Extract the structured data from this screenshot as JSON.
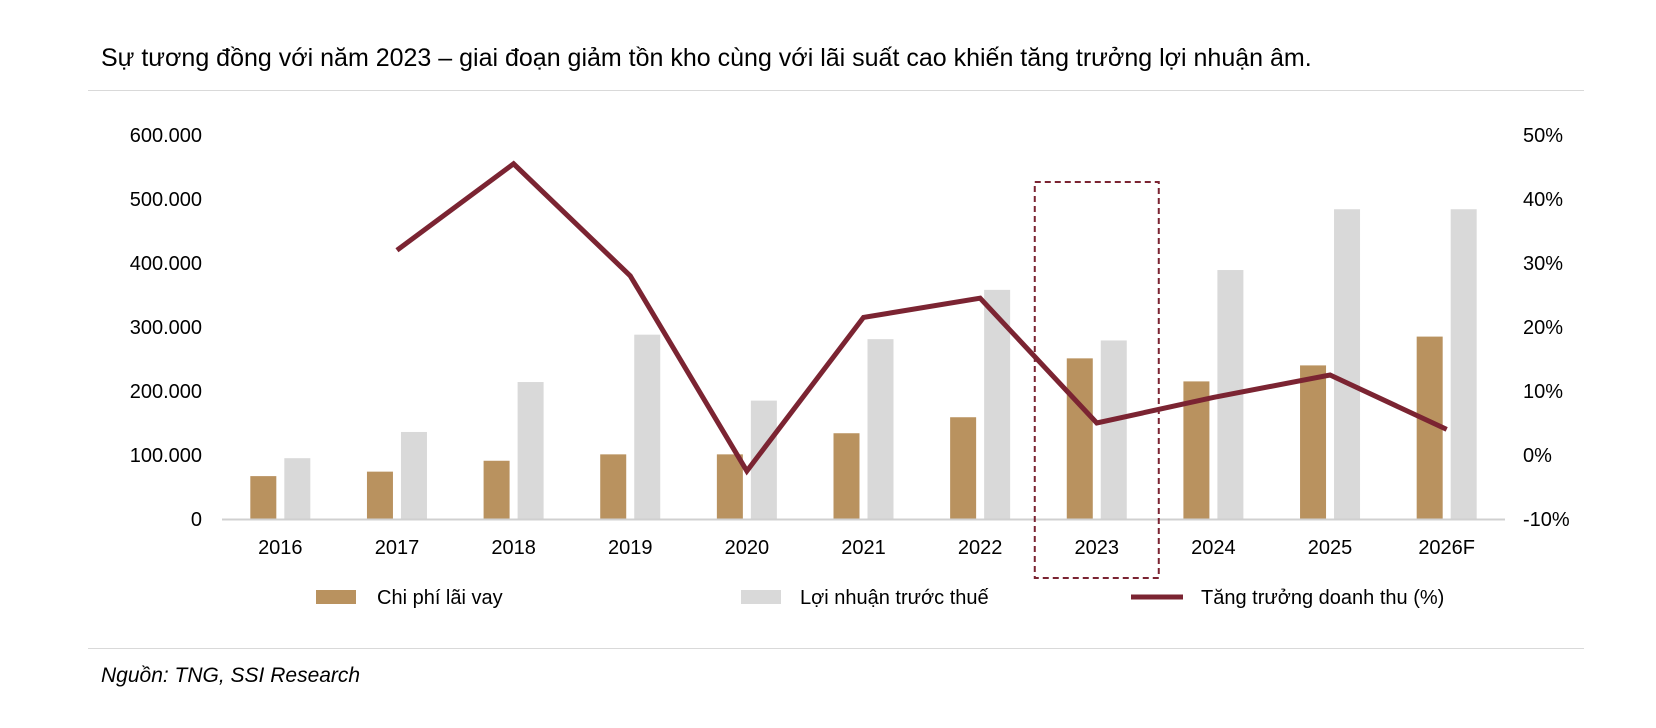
{
  "title": "Sự tương đồng với năm 2023 – giai đoạn giảm tồn kho cùng với lãi suất cao khiến tăng trưởng lợi nhuận âm.",
  "source": "Nguồn: TNG, SSI Research",
  "chart_data": {
    "type": "bar",
    "categories": [
      "2016",
      "2017",
      "2018",
      "2019",
      "2020",
      "2021",
      "2022",
      "2023",
      "2024",
      "2025",
      "2026F"
    ],
    "series": [
      {
        "name": "Chi phí lãi vay",
        "type": "bar",
        "axis": "left",
        "color": "#B9925F",
        "values": [
          67000,
          74000,
          91000,
          101000,
          101000,
          134000,
          159000,
          251000,
          215000,
          240000,
          285000
        ]
      },
      {
        "name": "Lợi nhuận trước thuế",
        "type": "bar",
        "axis": "left",
        "color": "#D9D9D9",
        "values": [
          95000,
          136000,
          214000,
          288000,
          185000,
          281000,
          358000,
          279000,
          389000,
          484000,
          484000
        ]
      },
      {
        "name": "Tăng trưởng doanh thu (%)",
        "type": "line",
        "axis": "right",
        "color": "#7B2432",
        "values": [
          null,
          32,
          45.5,
          28,
          -2.5,
          21.5,
          24.5,
          5,
          9,
          12.5,
          4
        ]
      }
    ],
    "y_left": {
      "min": 0,
      "max": 600000,
      "ticks": [
        "0",
        "100.000",
        "200.000",
        "300.000",
        "400.000",
        "500.000",
        "600.000"
      ]
    },
    "y_right": {
      "min": -10,
      "max": 50,
      "ticks": [
        "-10%",
        "0%",
        "10%",
        "20%",
        "30%",
        "40%",
        "50%"
      ]
    },
    "highlight": {
      "category": "2023",
      "style": "dashed-box",
      "color": "#7B2432"
    },
    "legend_position": "bottom",
    "grid": false
  }
}
